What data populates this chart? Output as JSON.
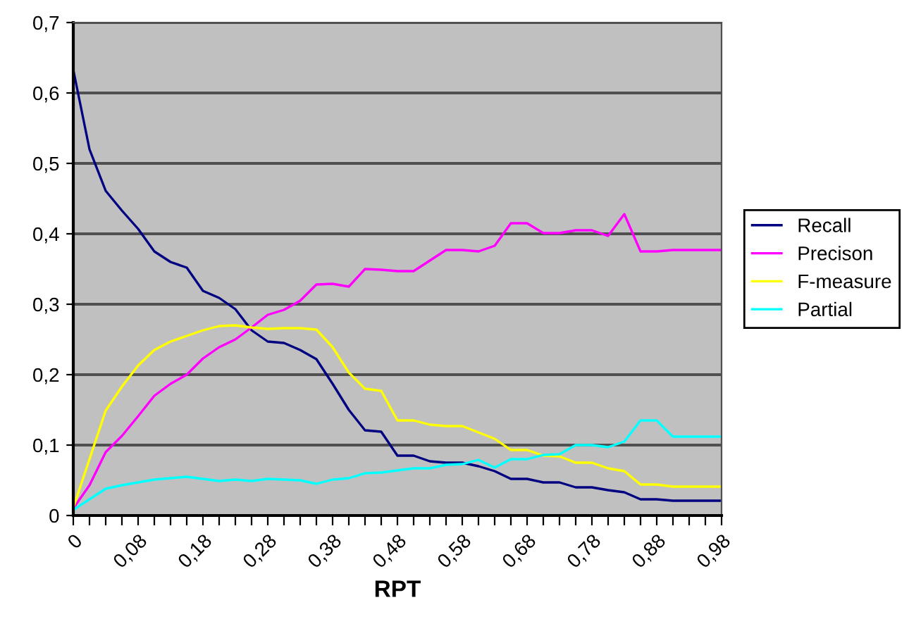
{
  "chart_data": {
    "type": "line",
    "xlabel": "RPT",
    "categories": [
      "0",
      null,
      null,
      null,
      "0,08",
      null,
      null,
      null,
      "0,18",
      null,
      null,
      null,
      "0,28",
      null,
      null,
      null,
      "0,38",
      null,
      null,
      null,
      "0,48",
      null,
      null,
      null,
      "0,58",
      null,
      null,
      null,
      "0,68",
      null,
      null,
      null,
      "0,78",
      null,
      null,
      null,
      "0,88",
      null,
      null,
      null,
      "0,98"
    ],
    "series": [
      {
        "name": "Recall",
        "color": "#000080",
        "values": [
          0.633,
          0.52,
          0.461,
          0.433,
          0.407,
          0.375,
          0.36,
          0.352,
          0.319,
          0.309,
          0.293,
          0.263,
          0.247,
          0.245,
          0.235,
          0.222,
          0.187,
          0.15,
          0.121,
          0.119,
          0.085,
          0.085,
          0.077,
          0.075,
          0.075,
          0.07,
          0.063,
          0.052,
          0.052,
          0.047,
          0.047,
          0.04,
          0.04,
          0.036,
          0.033,
          0.023,
          0.023,
          0.021,
          0.021,
          0.021,
          0.021
        ]
      },
      {
        "name": "Precison",
        "color": "#ff00ff",
        "values": [
          0.01,
          0.043,
          0.09,
          0.113,
          0.141,
          0.17,
          0.187,
          0.2,
          0.223,
          0.239,
          0.25,
          0.267,
          0.285,
          0.292,
          0.305,
          0.328,
          0.329,
          0.325,
          0.35,
          0.349,
          0.347,
          0.347,
          0.362,
          0.377,
          0.377,
          0.375,
          0.383,
          0.415,
          0.415,
          0.401,
          0.401,
          0.405,
          0.405,
          0.397,
          0.428,
          0.375,
          0.375,
          0.377,
          0.377,
          0.377,
          0.377
        ]
      },
      {
        "name": "F-measure",
        "color": "#ffff00",
        "values": [
          0.011,
          0.08,
          0.149,
          0.183,
          0.213,
          0.235,
          0.247,
          0.255,
          0.263,
          0.269,
          0.27,
          0.267,
          0.265,
          0.266,
          0.266,
          0.264,
          0.239,
          0.203,
          0.18,
          0.177,
          0.135,
          0.135,
          0.129,
          0.127,
          0.127,
          0.118,
          0.109,
          0.093,
          0.093,
          0.085,
          0.084,
          0.075,
          0.075,
          0.067,
          0.063,
          0.044,
          0.044,
          0.041,
          0.041,
          0.041,
          0.041
        ]
      },
      {
        "name": "Partial",
        "color": "#00ffff",
        "values": [
          0.008,
          0.023,
          0.038,
          0.043,
          0.047,
          0.051,
          0.053,
          0.055,
          0.052,
          0.049,
          0.051,
          0.049,
          0.052,
          0.051,
          0.05,
          0.045,
          0.051,
          0.053,
          0.06,
          0.061,
          0.064,
          0.067,
          0.067,
          0.072,
          0.073,
          0.079,
          0.068,
          0.08,
          0.08,
          0.086,
          0.087,
          0.1,
          0.1,
          0.097,
          0.105,
          0.135,
          0.135,
          0.112,
          0.112,
          0.112,
          0.112
        ]
      }
    ],
    "ylim": [
      0,
      0.7
    ],
    "yticks": [
      0,
      {
        "value": 0.1,
        "label": "0,1"
      },
      {
        "value": 0.2,
        "label": "0,2"
      },
      {
        "value": 0.3,
        "label": "0,3"
      },
      {
        "value": 0.4,
        "label": "0,4"
      },
      {
        "value": 0.5,
        "label": "0,5"
      },
      {
        "value": 0.6,
        "label": "0,6"
      },
      {
        "value": 0.7,
        "label": "0,7"
      }
    ],
    "grid": "y",
    "legend": "right",
    "marker": "none",
    "line_style": "solid"
  }
}
